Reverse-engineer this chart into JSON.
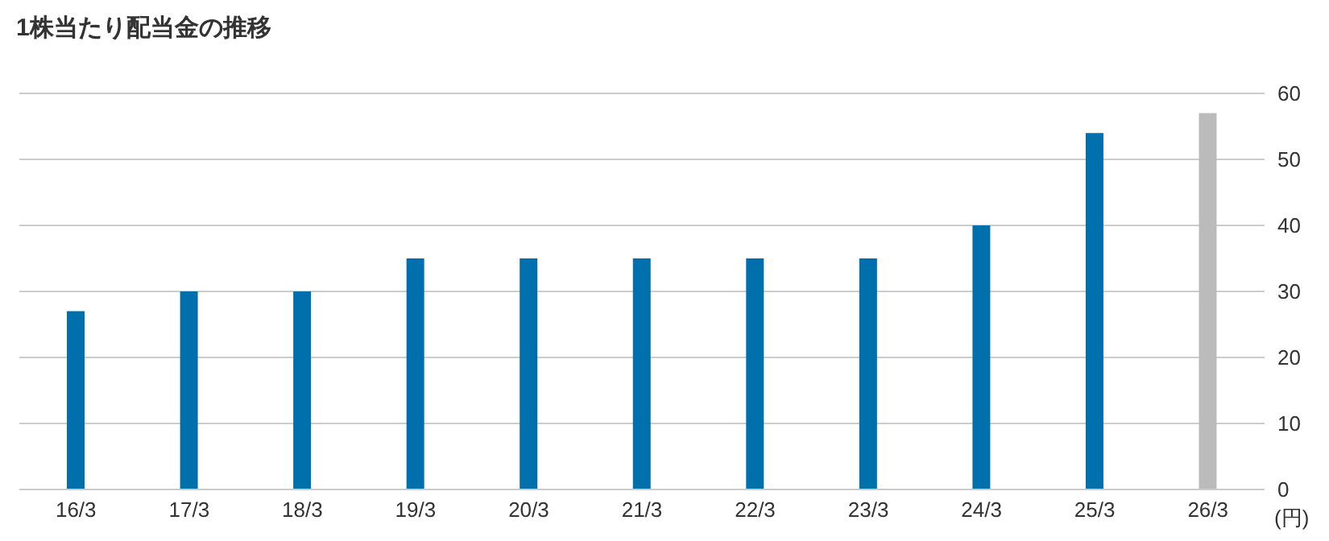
{
  "chart_data": {
    "type": "bar",
    "title": "1株当たり配当金の推移",
    "ylabel": "(円)",
    "categories": [
      "16/3",
      "17/3",
      "18/3",
      "19/3",
      "20/3",
      "21/3",
      "22/3",
      "23/3",
      "24/3",
      "25/3",
      "26/3"
    ],
    "values": [
      27,
      30,
      30,
      35,
      35,
      35,
      35,
      35,
      40,
      54,
      57
    ],
    "colors": [
      "#0070ad",
      "#0070ad",
      "#0070ad",
      "#0070ad",
      "#0070ad",
      "#0070ad",
      "#0070ad",
      "#0070ad",
      "#0070ad",
      "#0070ad",
      "#bbbbbb"
    ],
    "ylim": [
      0,
      60
    ],
    "yticks": [
      0,
      10,
      20,
      30,
      40,
      50,
      60
    ],
    "grid": "y"
  }
}
